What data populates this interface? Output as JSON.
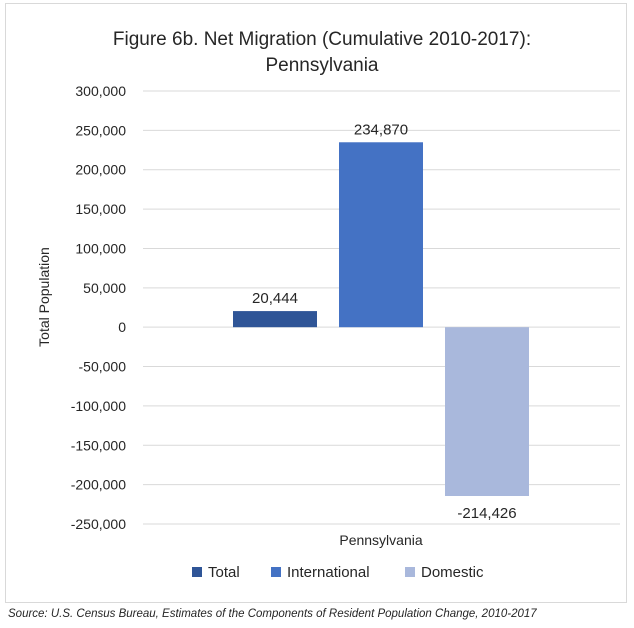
{
  "chart_data": {
    "type": "bar",
    "title": "Figure 6b. Net Migration (Cumulative 2010-2017):",
    "subtitle": "Pennsylvania",
    "categories": [
      "Pennsylvania"
    ],
    "series": [
      {
        "name": "Total",
        "values": [
          20444
        ],
        "label": "20,444",
        "color": "#2f5597"
      },
      {
        "name": "International",
        "values": [
          234870
        ],
        "label": "234,870",
        "color": "#4472c4"
      },
      {
        "name": "Domestic",
        "values": [
          -214426
        ],
        "label": "-214,426",
        "color": "#a9b8dc"
      }
    ],
    "xlabel": "Pennsylvania",
    "ylabel": "Total Population",
    "ylim": [
      -250000,
      300000
    ],
    "yticks": [
      300000,
      250000,
      200000,
      150000,
      100000,
      50000,
      0,
      -50000,
      -100000,
      -150000,
      -200000,
      -250000
    ],
    "ytick_labels": [
      "300,000",
      "250,000",
      "200,000",
      "150,000",
      "100,000",
      "50,000",
      "0",
      "-50,000",
      "-100,000",
      "-150,000",
      "-200,000",
      "-250,000"
    ],
    "grid": true,
    "legend_position": "bottom"
  },
  "source_note": "Source: U.S. Census Bureau, Estimates of the Components of Resident Population Change, 2010-2017"
}
